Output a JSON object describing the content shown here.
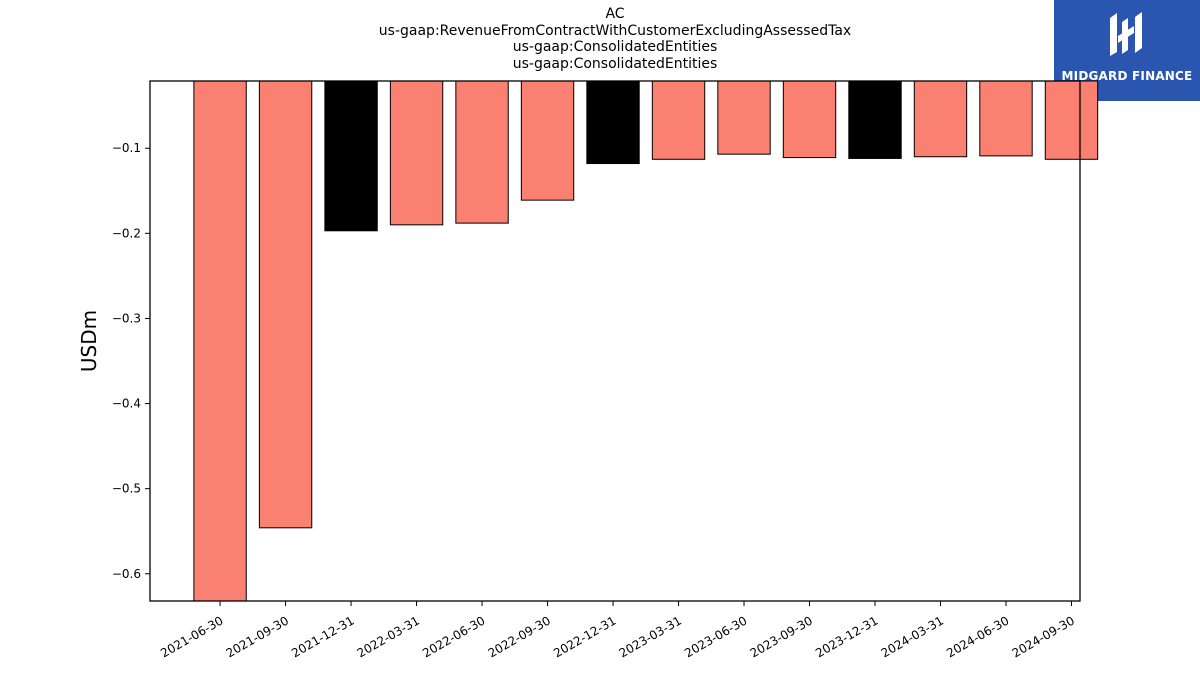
{
  "chart_data": {
    "type": "bar",
    "title_lines": [
      "AC",
      "us-gaap:RevenueFromContractWithCustomerExcludingAssessedTax",
      "us-gaap:ConsolidatedEntities",
      "us-gaap:ConsolidatedEntities"
    ],
    "xlabel": "",
    "ylabel": "USDm",
    "categories": [
      "2021-06-30",
      "2021-09-30",
      "2021-12-31",
      "2022-03-31",
      "2022-06-30",
      "2022-09-30",
      "2022-12-31",
      "2023-03-31",
      "2023-06-30",
      "2023-09-30",
      "2023-12-31",
      "2024-03-31",
      "2024-06-30",
      "2024-09-30"
    ],
    "values": [
      -0.632,
      -0.546,
      -0.197,
      -0.19,
      -0.188,
      -0.161,
      -0.118,
      -0.113,
      -0.107,
      -0.111,
      -0.112,
      -0.11,
      -0.109,
      -0.113
    ],
    "bar_colors": [
      "#fa8072",
      "#fa8072",
      "#000000",
      "#fa8072",
      "#fa8072",
      "#fa8072",
      "#000000",
      "#fa8072",
      "#fa8072",
      "#fa8072",
      "#000000",
      "#fa8072",
      "#fa8072",
      "#fa8072"
    ],
    "ylim": [
      -0.632,
      -0.021
    ],
    "yticks": [
      -0.1,
      -0.2,
      -0.3,
      -0.4,
      -0.5,
      -0.6
    ],
    "ytick_labels": [
      "−0.1",
      "−0.2",
      "−0.3",
      "−0.4",
      "−0.5",
      "−0.6"
    ],
    "grid": false,
    "legend": "none"
  },
  "logo": {
    "text": "MIDGARD FINANCE",
    "background": "#2a56b0"
  }
}
